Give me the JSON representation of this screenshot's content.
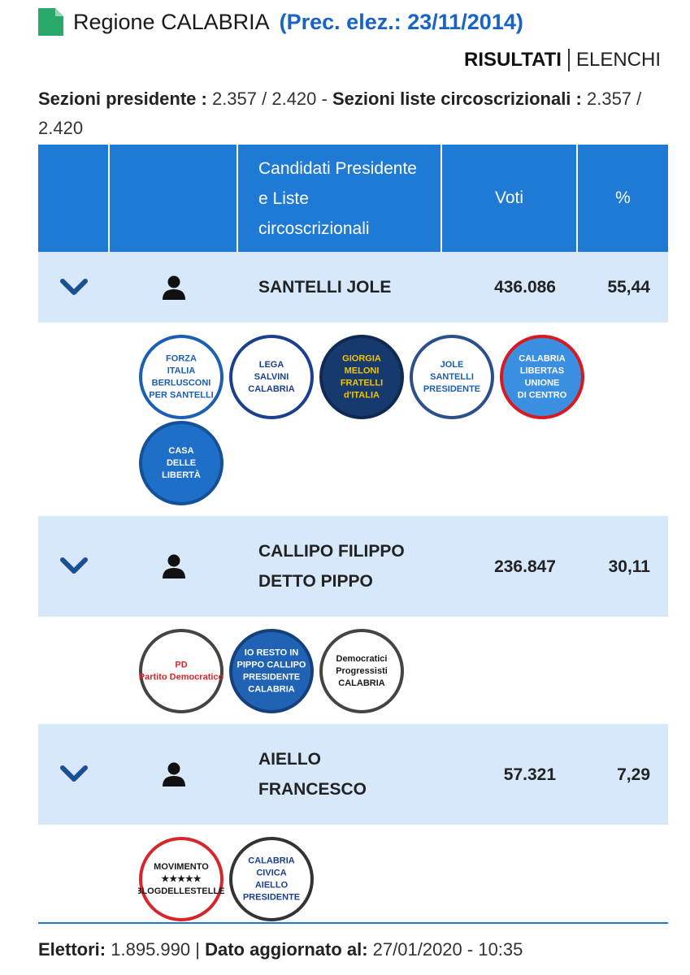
{
  "header": {
    "title": "Regione CALABRIA",
    "previous": "(Prec. elez.: 23/11/2014)"
  },
  "tabs": [
    "RISULTATI",
    "ELENCHI"
  ],
  "sections": {
    "president_label": "Sezioni presidente :",
    "president_value": "2.357 / 2.420",
    "separator": "-",
    "lists_label": "Sezioni liste circoscrizionali :",
    "lists_value": "2.357 / 2.420"
  },
  "table": {
    "headers": [
      "Candidati Presidente e Liste circoscrizionali",
      "Voti",
      "%"
    ],
    "candidates": [
      {
        "name": "SANTELLI JOLE",
        "votes": "436.086",
        "percent": "55,44",
        "lists": [
          {
            "lines": [
              "FORZA",
              "ITALIA",
              "BERLUSCONI",
              "PER SANTELLI"
            ],
            "bg": "#ffffff",
            "fg": "#1a5fb4",
            "border": "#1a5fb4"
          },
          {
            "lines": [
              "LEGA",
              "SALVINI",
              "CALABRIA"
            ],
            "bg": "#ffffff",
            "fg": "#1b3f8f",
            "border": "#1b3f8f"
          },
          {
            "lines": [
              "GIORGIA",
              "MELONI",
              "FRATELLI",
              "d'ITALIA"
            ],
            "bg": "#173a6e",
            "fg": "#f2c500",
            "border": "#0f2a52"
          },
          {
            "lines": [
              "JOLE",
              "SANTELLI",
              "PRESIDENTE"
            ],
            "bg": "#ffffff",
            "fg": "#1b5fb0",
            "border": "#2a4f8a"
          },
          {
            "lines": [
              "CALABRIA",
              "LIBERTAS",
              "UNIONE",
              "DI CENTRO"
            ],
            "bg": "#3a8fe0",
            "fg": "#ffffff",
            "border": "#d71920"
          },
          {
            "lines": [
              "CASA",
              "DELLE",
              "LIBERTÀ"
            ],
            "bg": "#1d6fc7",
            "fg": "#ffffff",
            "border": "#145197"
          }
        ]
      },
      {
        "name": "CALLIPO FILIPPO DETTO PIPPO",
        "votes": "236.847",
        "percent": "30,11",
        "lists": [
          {
            "lines": [
              "PD",
              "Partito Democratico"
            ],
            "bg": "#ffffff",
            "fg": "#d7262b",
            "border": "#444444"
          },
          {
            "lines": [
              "IO RESTO IN",
              "PIPPO CALLIPO",
              "PRESIDENTE",
              "CALABRIA"
            ],
            "bg": "#2063b5",
            "fg": "#ffffff",
            "border": "#16407a"
          },
          {
            "lines": [
              "Democratici",
              "Progressisti",
              "CALABRIA"
            ],
            "bg": "#ffffff",
            "fg": "#1a1a1a",
            "border": "#444444"
          }
        ]
      },
      {
        "name": "AIELLO FRANCESCO",
        "votes": "57.321",
        "percent": "7,29",
        "lists": [
          {
            "lines": [
              "MOVIMENTO",
              "★★★★★",
              "ILBLOGDELLESTELLE.IT"
            ],
            "bg": "#ffffff",
            "fg": "#1a1a1a",
            "border": "#d7262b"
          },
          {
            "lines": [
              "CALABRIA",
              "CIVICA",
              "AIELLO",
              "PRESIDENTE"
            ],
            "bg": "#ffffff",
            "fg": "#1b3f8f",
            "border": "#333333"
          }
        ]
      }
    ]
  },
  "footer": {
    "voters_label": "Elettori:",
    "voters": "1.895.990",
    "separator": "|",
    "updated_label": "Dato aggiornato al:",
    "updated": "27/01/2020 - 10:35"
  }
}
